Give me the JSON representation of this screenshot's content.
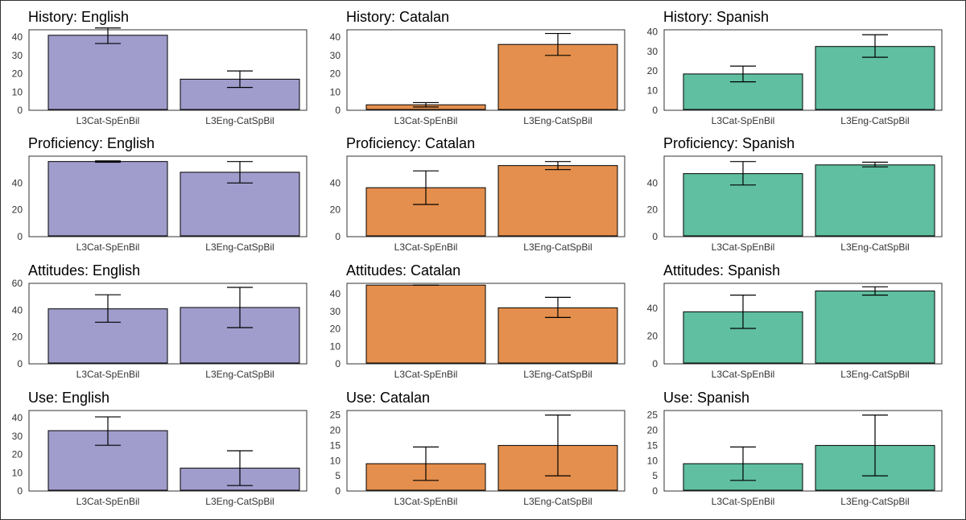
{
  "colors": {
    "English": "#a09dcd",
    "Catalan": "#e48f4d",
    "Spanish": "#5fbfa0",
    "frame": "#333333",
    "errorbar": "#000000"
  },
  "chart_data": [
    {
      "type": "bar",
      "title": "History: English",
      "categories": [
        "L3Cat-SpEnBil",
        "L3Eng-CatSpBil"
      ],
      "values": [
        41,
        17
      ],
      "errors": [
        [
          36.5,
          45
        ],
        [
          12.5,
          21.5
        ]
      ],
      "yticks": [
        0,
        10,
        20,
        30,
        40
      ],
      "ylim": [
        0,
        44
      ],
      "language": "English"
    },
    {
      "type": "bar",
      "title": "History: Catalan",
      "categories": [
        "L3Cat-SpEnBil",
        "L3Eng-CatSpBil"
      ],
      "values": [
        3,
        36
      ],
      "errors": [
        [
          1.8,
          4.2
        ],
        [
          30,
          42
        ]
      ],
      "yticks": [
        0,
        10,
        20,
        30,
        40
      ],
      "ylim": [
        0,
        44
      ],
      "language": "Catalan"
    },
    {
      "type": "bar",
      "title": "History: Spanish",
      "categories": [
        "L3Cat-SpEnBil",
        "L3Eng-CatSpBil"
      ],
      "values": [
        18.5,
        32.5
      ],
      "errors": [
        [
          14.5,
          22.5
        ],
        [
          27,
          38.5
        ]
      ],
      "yticks": [
        0,
        10,
        20,
        30,
        40
      ],
      "ylim": [
        0,
        41
      ],
      "language": "Spanish"
    },
    {
      "type": "bar",
      "title": "Proficiency: English",
      "categories": [
        "L3Cat-SpEnBil",
        "L3Eng-CatSpBil"
      ],
      "values": [
        56,
        48
      ],
      "errors": [
        [
          55.5,
          56.5
        ],
        [
          40,
          56
        ]
      ],
      "yticks": [
        0,
        20,
        40
      ],
      "ylim": [
        0,
        60
      ],
      "language": "English"
    },
    {
      "type": "bar",
      "title": "Proficiency: Catalan",
      "categories": [
        "L3Cat-SpEnBil",
        "L3Eng-CatSpBil"
      ],
      "values": [
        36.5,
        53
      ],
      "errors": [
        [
          24,
          49
        ],
        [
          50,
          56
        ]
      ],
      "yticks": [
        0,
        20,
        40
      ],
      "ylim": [
        0,
        60
      ],
      "language": "Catalan"
    },
    {
      "type": "bar",
      "title": "Proficiency: Spanish",
      "categories": [
        "L3Cat-SpEnBil",
        "L3Eng-CatSpBil"
      ],
      "values": [
        47,
        53.5
      ],
      "errors": [
        [
          38.5,
          56
        ],
        [
          52,
          55.5
        ]
      ],
      "yticks": [
        0,
        20,
        40
      ],
      "ylim": [
        0,
        60
      ],
      "language": "Spanish"
    },
    {
      "type": "bar",
      "title": "Attitudes: English",
      "categories": [
        "L3Cat-SpEnBil",
        "L3Eng-CatSpBil"
      ],
      "values": [
        41,
        42
      ],
      "errors": [
        [
          31,
          51.5
        ],
        [
          27,
          57
        ]
      ],
      "yticks": [
        0,
        20,
        40,
        60
      ],
      "ylim": [
        0,
        60
      ],
      "language": "English"
    },
    {
      "type": "bar",
      "title": "Attitudes: Catalan",
      "categories": [
        "L3Cat-SpEnBil",
        "L3Eng-CatSpBil"
      ],
      "values": [
        45,
        32
      ],
      "errors": [
        [
          45,
          45
        ],
        [
          26.5,
          38
        ]
      ],
      "yticks": [
        0,
        10,
        20,
        30,
        40
      ],
      "ylim": [
        0,
        46
      ],
      "language": "Catalan"
    },
    {
      "type": "bar",
      "title": "Attitudes: Spanish",
      "categories": [
        "L3Cat-SpEnBil",
        "L3Eng-CatSpBil"
      ],
      "values": [
        37.5,
        52.5
      ],
      "errors": [
        [
          25.5,
          49.5
        ],
        [
          49.5,
          55.5
        ]
      ],
      "yticks": [
        0,
        20,
        40
      ],
      "ylim": [
        0,
        58
      ],
      "language": "Spanish"
    },
    {
      "type": "bar",
      "title": "Use: English",
      "categories": [
        "L3Cat-SpEnBil",
        "L3Eng-CatSpBil"
      ],
      "values": [
        33,
        12.5
      ],
      "errors": [
        [
          25,
          40.5
        ],
        [
          3,
          22
        ]
      ],
      "yticks": [
        0,
        10,
        20,
        30,
        40
      ],
      "ylim": [
        0,
        44
      ],
      "language": "English"
    },
    {
      "type": "bar",
      "title": "Use: Catalan",
      "categories": [
        "L3Cat-SpEnBil",
        "L3Eng-CatSpBil"
      ],
      "values": [
        9,
        15
      ],
      "errors": [
        [
          3.5,
          14.5
        ],
        [
          5,
          25
        ]
      ],
      "yticks": [
        0,
        5,
        10,
        15,
        20,
        25
      ],
      "ylim": [
        0,
        26.5
      ],
      "language": "Catalan"
    },
    {
      "type": "bar",
      "title": "Use: Spanish",
      "categories": [
        "L3Cat-SpEnBil",
        "L3Eng-CatSpBil"
      ],
      "values": [
        9,
        15
      ],
      "errors": [
        [
          3.5,
          14.5
        ],
        [
          5,
          25
        ]
      ],
      "yticks": [
        0,
        5,
        10,
        15,
        20,
        25
      ],
      "ylim": [
        0,
        26.5
      ],
      "language": "Spanish"
    }
  ]
}
